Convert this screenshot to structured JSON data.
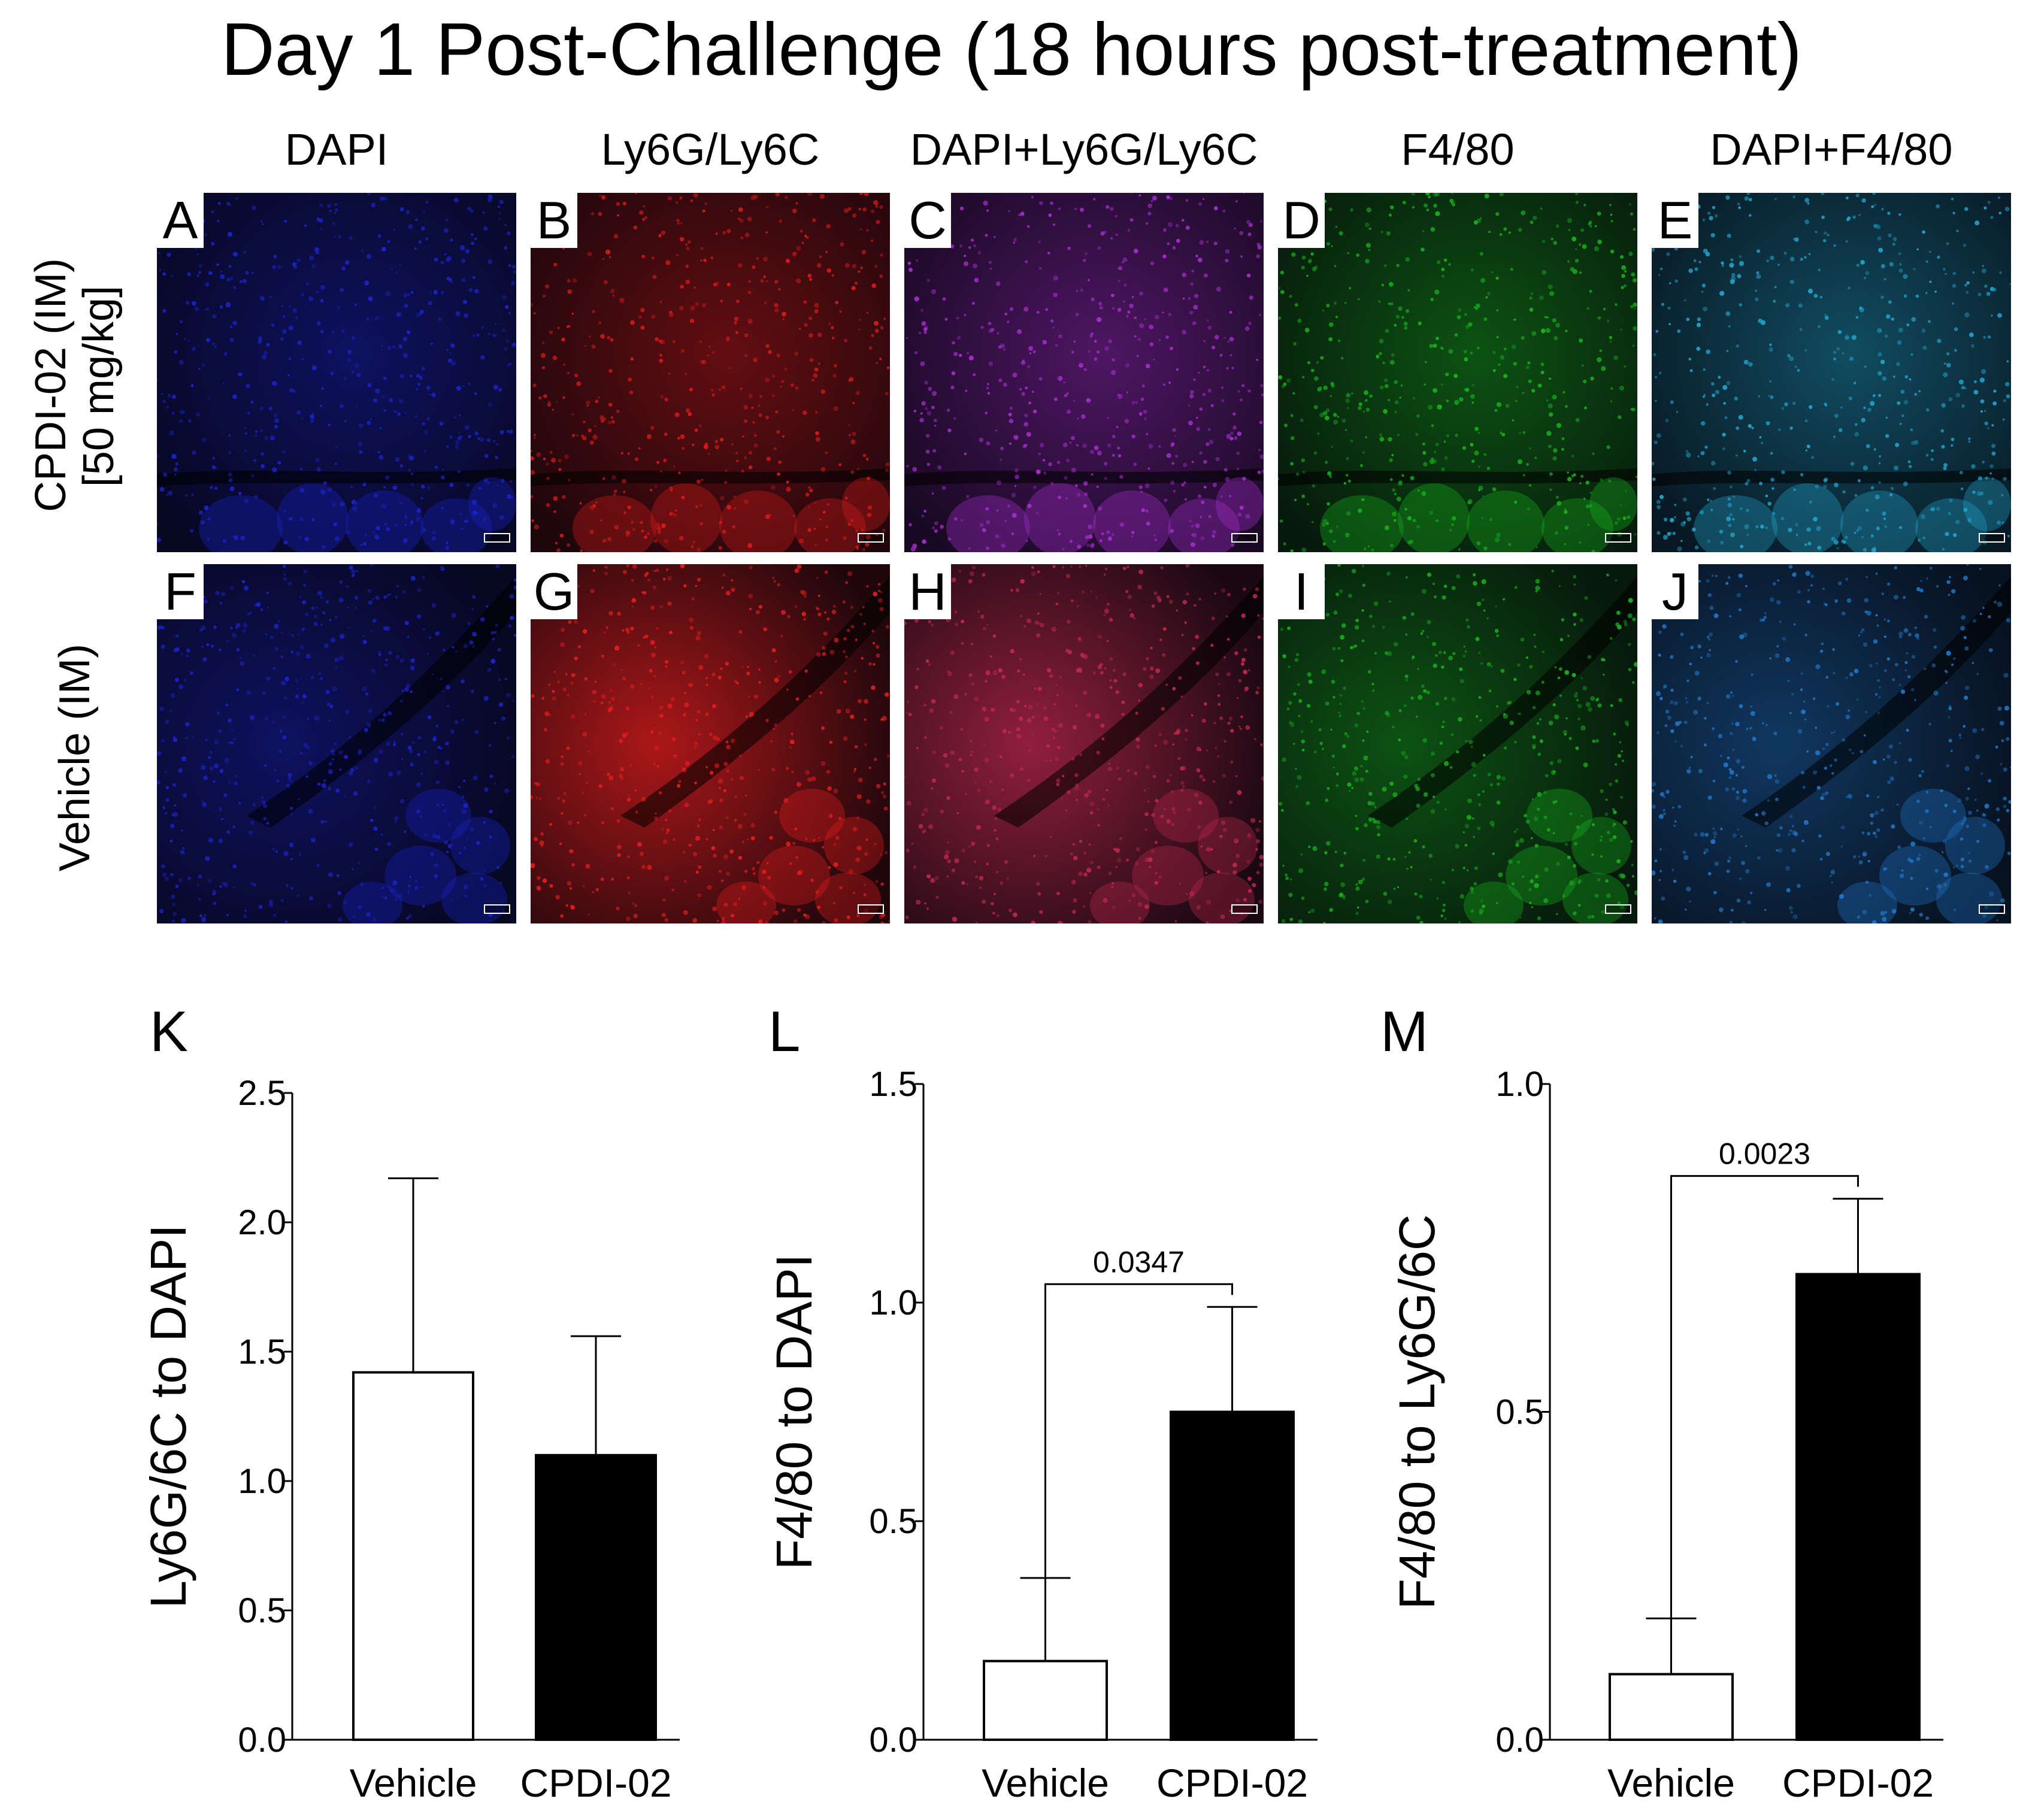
{
  "figure": {
    "title": "Day 1 Post-Challenge (18 hours post-treatment)",
    "columns": [
      "DAPI",
      "Ly6G/Ly6C",
      "DAPI+Ly6G/Ly6C",
      "F4/80",
      "DAPI+F4/80"
    ],
    "rows": [
      {
        "label_line1": "CPDI-02 (IM)",
        "label_line2": "[50 mg/kg]",
        "panels": [
          {
            "letter": "A",
            "color": "#1b22c8"
          },
          {
            "letter": "B",
            "color": "#d81a1a"
          },
          {
            "letter": "C",
            "color": "#a82dd0"
          },
          {
            "letter": "D",
            "color": "#18b21e"
          },
          {
            "letter": "E",
            "color": "#22a4cc"
          }
        ]
      },
      {
        "label_line1": "Vehicle (IM)",
        "label_line2": "",
        "panels": [
          {
            "letter": "F",
            "color": "#1b22c8"
          },
          {
            "letter": "G",
            "color": "#e41e1e"
          },
          {
            "letter": "H",
            "color": "#c0284e"
          },
          {
            "letter": "I",
            "color": "#18b21e"
          },
          {
            "letter": "J",
            "color": "#2076c8"
          }
        ]
      }
    ]
  },
  "chart_data": [
    {
      "type": "bar",
      "panel_letter": "K",
      "categories": [
        "Vehicle",
        "CPDI-02"
      ],
      "values": [
        1.42,
        1.1
      ],
      "errors": [
        0.75,
        0.46
      ],
      "bar_colors": [
        "#ffffff",
        "#000000"
      ],
      "ylabel": "Ly6G/6C to DAPI",
      "ylim": [
        0,
        2.5
      ],
      "yticks": [
        "0.0",
        "0.5",
        "1.0",
        "1.5",
        "2.0",
        "2.5"
      ],
      "significance": ""
    },
    {
      "type": "bar",
      "panel_letter": "L",
      "categories": [
        "Vehicle",
        "CPDI-02"
      ],
      "values": [
        0.18,
        0.75
      ],
      "errors": [
        0.19,
        0.24
      ],
      "bar_colors": [
        "#ffffff",
        "#000000"
      ],
      "ylabel": "F4/80 to DAPI",
      "ylim": [
        0,
        1.5
      ],
      "yticks": [
        "0.0",
        "0.5",
        "1.0",
        "1.5"
      ],
      "significance": "0.0347"
    },
    {
      "type": "bar",
      "panel_letter": "M",
      "categories": [
        "Vehicle",
        "CPDI-02"
      ],
      "values": [
        0.1,
        0.71
      ],
      "errors": [
        0.085,
        0.115
      ],
      "bar_colors": [
        "#ffffff",
        "#000000"
      ],
      "ylabel": "F4/80 to Ly6G/6C",
      "ylim": [
        0,
        1.0
      ],
      "yticks": [
        "0.0",
        "0.5",
        "1.0"
      ],
      "significance": "0.0023"
    }
  ]
}
